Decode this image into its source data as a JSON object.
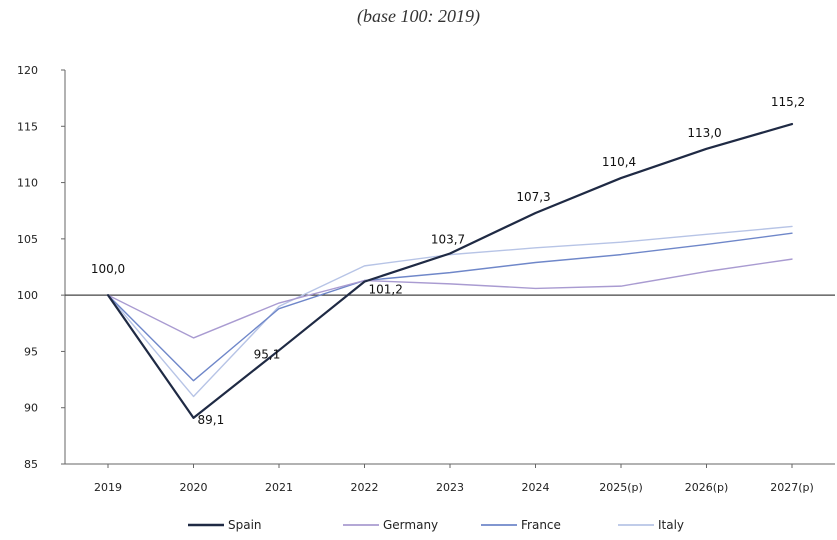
{
  "chart_data": {
    "type": "line",
    "subtitle": "(base 100: 2019)",
    "title": "",
    "xlabel": "",
    "ylabel": "",
    "categories": [
      "2019",
      "2020",
      "2021",
      "2022",
      "2023",
      "2024",
      "2025(p)",
      "2026(p)",
      "2027(p)"
    ],
    "ylim": [
      85,
      120
    ],
    "yticks": [
      85,
      90,
      95,
      100,
      105,
      110,
      115,
      120
    ],
    "ytick_labels": [
      "85",
      "90",
      "95",
      "100",
      "105",
      "110",
      "115",
      "120"
    ],
    "reference_line": 100,
    "grid": false,
    "legend_position": "bottom",
    "series": [
      {
        "name": "Spain",
        "color": "#1f2a44",
        "width": 2.2,
        "values": [
          100.0,
          89.1,
          95.1,
          101.2,
          103.7,
          107.3,
          110.4,
          113.0,
          115.2
        ],
        "data_labels": [
          "100,0",
          "89,1",
          "95,1",
          "101,2",
          "103,7",
          "107,3",
          "110,4",
          "113,0",
          "115,2"
        ]
      },
      {
        "name": "Germany",
        "color": "#a99bd1",
        "width": 1.4,
        "values": [
          100.0,
          96.2,
          99.3,
          101.3,
          101.0,
          100.6,
          100.8,
          102.1,
          103.2
        ]
      },
      {
        "name": "France",
        "color": "#6f87c9",
        "width": 1.4,
        "values": [
          100.0,
          92.4,
          98.8,
          101.3,
          102.0,
          102.9,
          103.6,
          104.5,
          105.5
        ]
      },
      {
        "name": "Italy",
        "color": "#b7c4e6",
        "width": 1.4,
        "values": [
          100.0,
          91.0,
          99.0,
          102.6,
          103.6,
          104.2,
          104.7,
          105.4,
          106.1
        ]
      }
    ]
  }
}
